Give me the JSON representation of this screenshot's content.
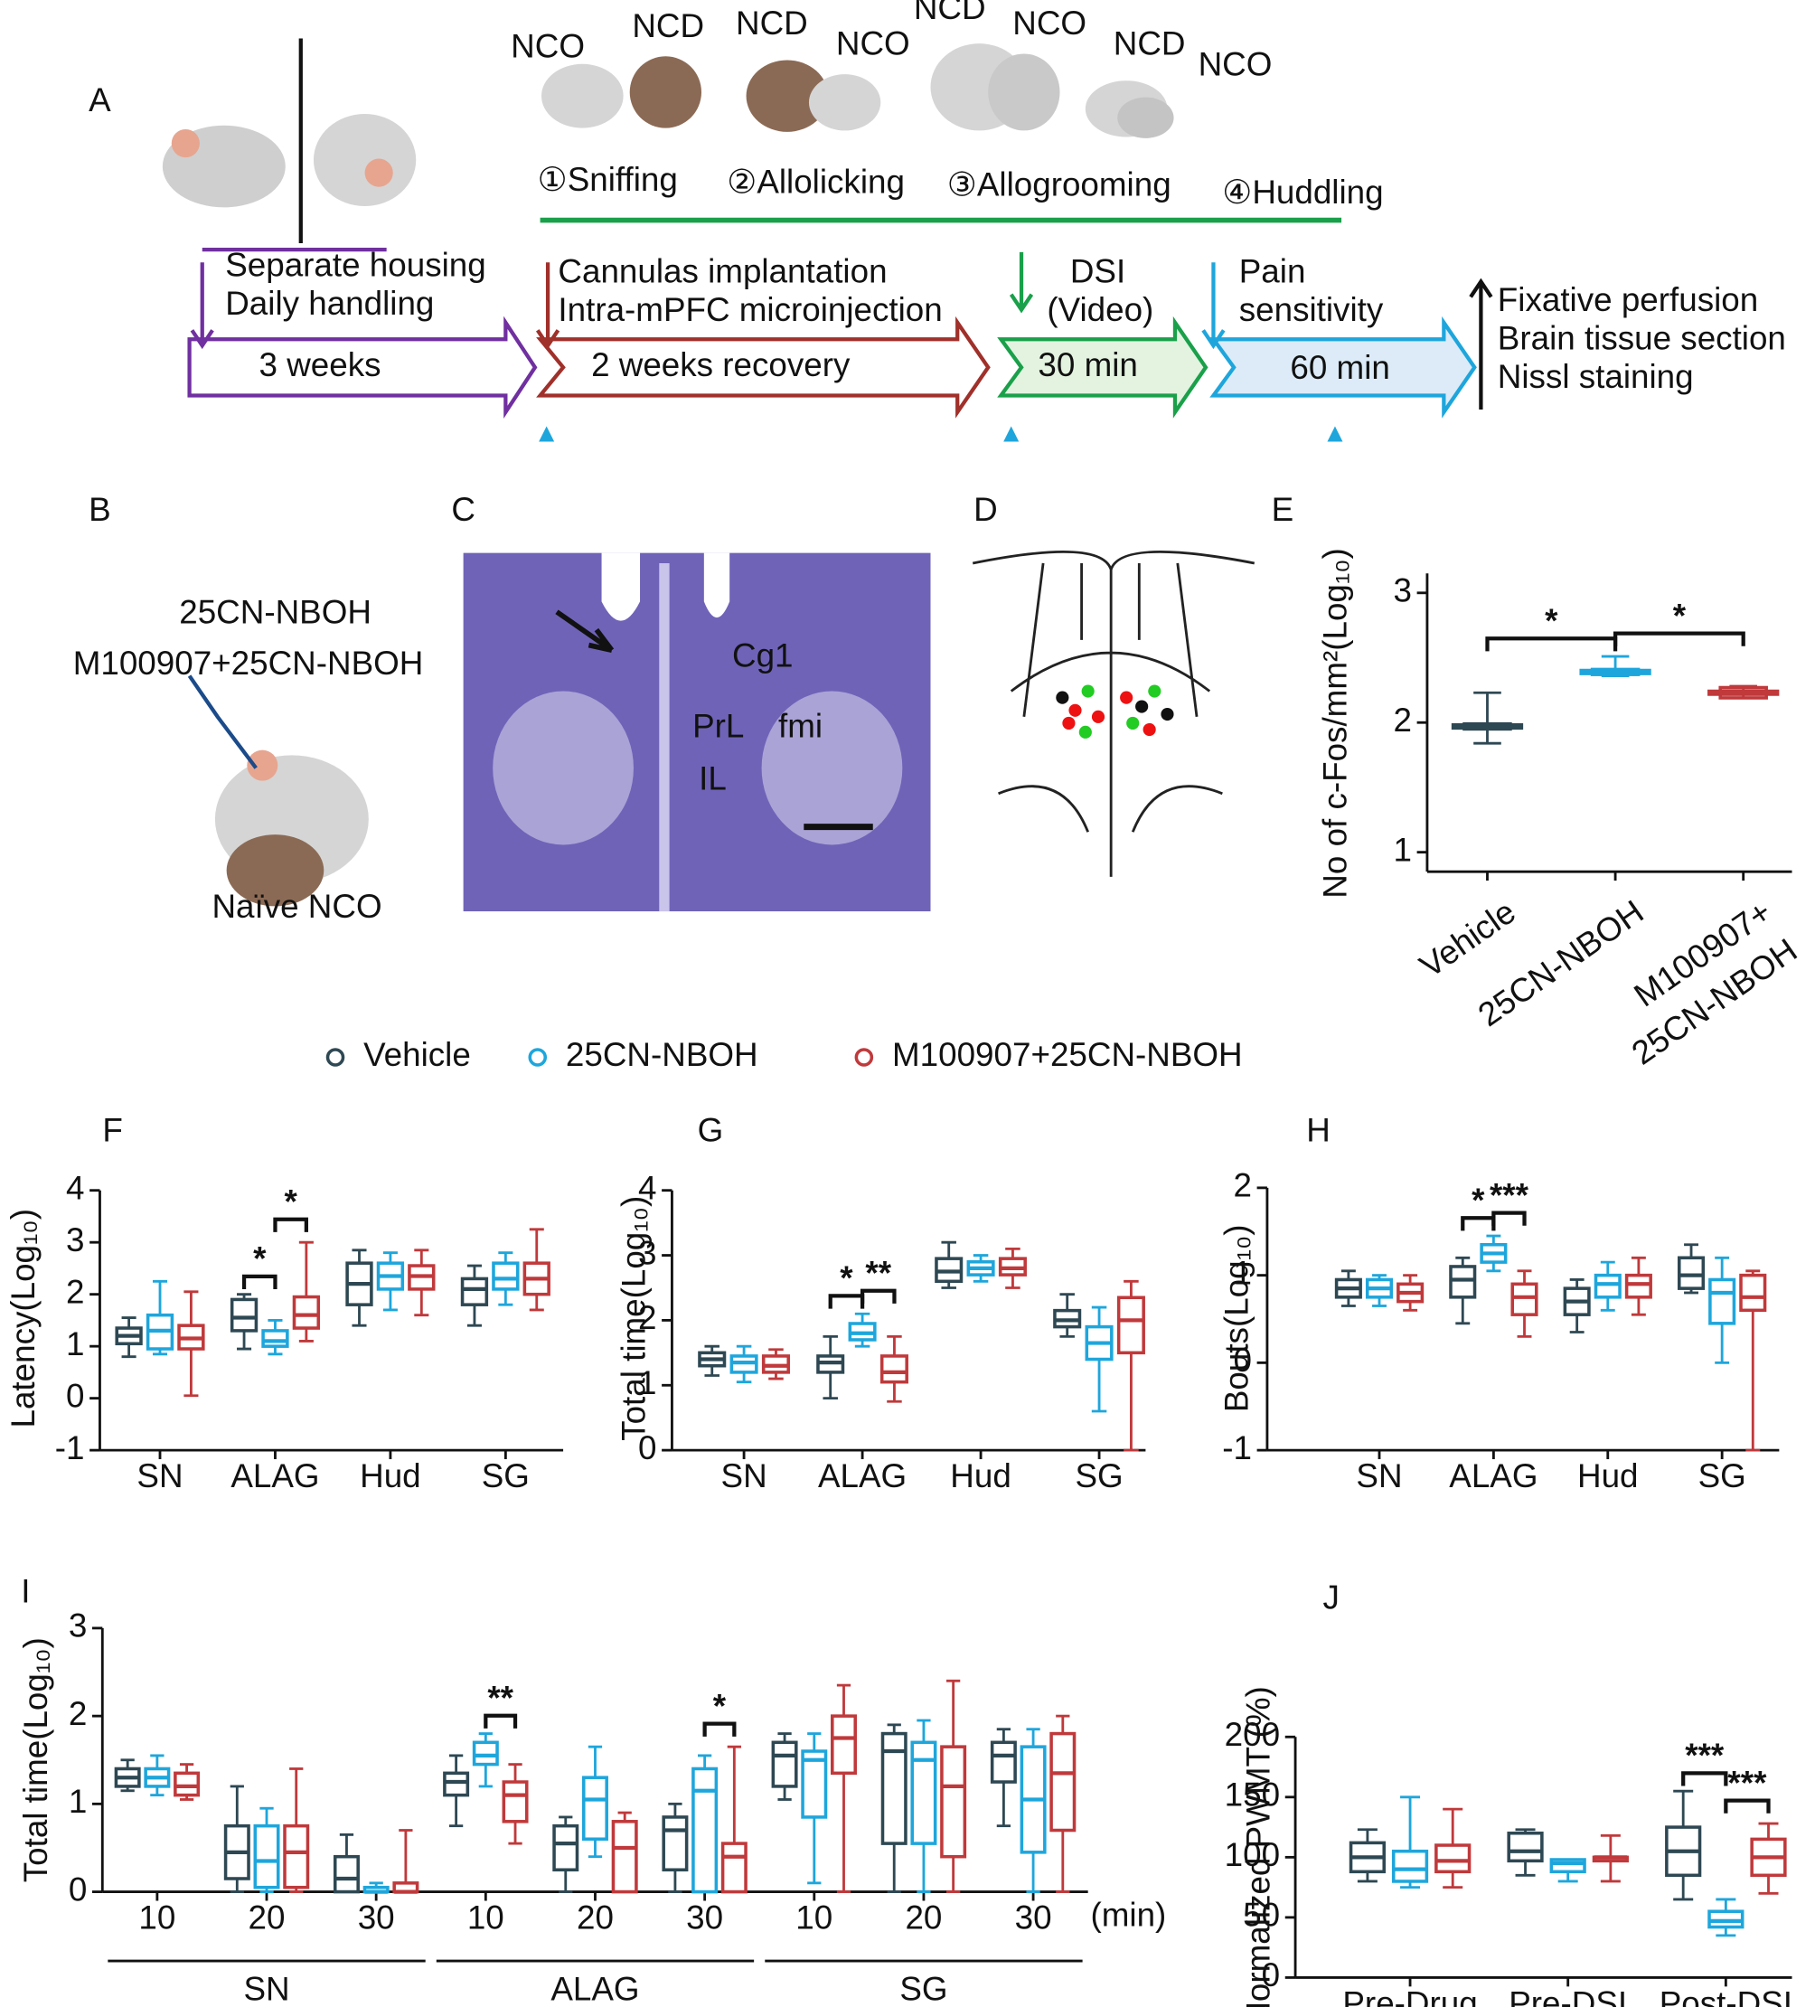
{
  "figure": {
    "panel_labels": [
      "A",
      "B",
      "C",
      "D",
      "E",
      "F",
      "G",
      "H",
      "I",
      "J"
    ],
    "a": {
      "mice_labels": [
        "NCO",
        "NCD",
        "NCD",
        "NCO",
        "NCD",
        "NCO",
        "NCD",
        "NCO"
      ],
      "steps": [
        "①Sniffing",
        "②Allolicking",
        "③Allogrooming",
        "④Huddling"
      ],
      "housing": [
        "Separate housing",
        "Daily handling"
      ],
      "surgery": [
        "Cannulas implantation",
        "Intra-mPFC microinjection"
      ],
      "dsi": [
        "DSI",
        "(Video)"
      ],
      "pain": [
        "Pain",
        "sensitivity"
      ],
      "end": [
        "Fixative perfusion",
        "Brain tissue section",
        "Nissl staining"
      ],
      "phases": [
        "3 weeks",
        "2 weeks recovery",
        "30 min",
        "60 min"
      ]
    },
    "b": {
      "drugs": [
        "25CN-NBOH",
        "M100907+25CN-NBOH"
      ],
      "animal": "Naïve NCO"
    },
    "c": {
      "regions": [
        "Cg1",
        "PrL",
        "fmi",
        "IL"
      ]
    }
  },
  "chart_data": [
    {
      "type": "box",
      "ylabel": "No of c-Fos/mm²(Log₁₀)",
      "ylim": [
        0.85,
        3.15
      ],
      "yticks": [
        1,
        2,
        3
      ],
      "categories": [
        "Vehicle",
        "25CN-NBOH",
        [
          "M100907+",
          "25CN-NBOH"
        ]
      ],
      "colors": [
        "#2e4853",
        "#1ea6dc",
        "#c0393b"
      ],
      "values": [
        {
          "min": 1.84,
          "q1": 1.95,
          "median": 1.97,
          "q3": 1.99,
          "max": 2.23
        },
        {
          "min": 2.36,
          "q1": 2.37,
          "median": 2.39,
          "q3": 2.41,
          "max": 2.51
        },
        {
          "min": 2.19,
          "q1": 2.19,
          "median": 2.23,
          "q3": 2.27,
          "max": 2.28
        }
      ],
      "annotations": [
        {
          "text": "*",
          "at": [
            0,
            1
          ]
        },
        {
          "text": "*",
          "at": [
            1,
            2
          ]
        }
      ]
    },
    {
      "type": "grouped-box",
      "ylabel": "Latency(Log₁₀)",
      "ylim": [
        -1,
        4
      ],
      "yticks": [
        -1,
        0,
        1,
        2,
        3,
        4
      ],
      "categories": [
        "SN",
        "ALAG",
        "Hud",
        "SG"
      ],
      "series": [
        {
          "name": "Vehicle",
          "color": "#2e4853",
          "values": [
            {
              "min": 0.8,
              "q1": 1.05,
              "median": 1.2,
              "q3": 1.35,
              "max": 1.55
            },
            {
              "min": 0.95,
              "q1": 1.3,
              "median": 1.55,
              "q3": 1.9,
              "max": 2.0
            },
            {
              "min": 1.4,
              "q1": 1.8,
              "median": 2.2,
              "q3": 2.6,
              "max": 2.85
            },
            {
              "min": 1.4,
              "q1": 1.8,
              "median": 2.1,
              "q3": 2.3,
              "max": 2.55
            }
          ]
        },
        {
          "name": "25CN-NBOH",
          "color": "#1ea6dc",
          "values": [
            {
              "min": 0.85,
              "q1": 0.95,
              "median": 1.3,
              "q3": 1.6,
              "max": 2.25
            },
            {
              "min": 0.85,
              "q1": 1.0,
              "median": 1.1,
              "q3": 1.3,
              "max": 1.5
            },
            {
              "min": 1.7,
              "q1": 2.1,
              "median": 2.35,
              "q3": 2.6,
              "max": 2.8
            },
            {
              "min": 1.8,
              "q1": 2.1,
              "median": 2.3,
              "q3": 2.6,
              "max": 2.8
            }
          ]
        },
        {
          "name": "M100907+25CN-NBOH",
          "color": "#c0393b",
          "values": [
            {
              "min": 0.05,
              "q1": 0.95,
              "median": 1.15,
              "q3": 1.4,
              "max": 2.05
            },
            {
              "min": 1.1,
              "q1": 1.35,
              "median": 1.6,
              "q3": 1.95,
              "max": 3.0
            },
            {
              "min": 1.6,
              "q1": 2.1,
              "median": 2.35,
              "q3": 2.55,
              "max": 2.85
            },
            {
              "min": 1.7,
              "q1": 2.0,
              "median": 2.3,
              "q3": 2.6,
              "max": 3.25
            }
          ]
        }
      ],
      "annotations": [
        {
          "text": "*",
          "category": 1,
          "at": [
            0,
            1
          ]
        },
        {
          "text": "*",
          "category": 1,
          "at": [
            1,
            2
          ]
        }
      ]
    },
    {
      "type": "grouped-box",
      "ylabel": "Total time(Log₁₀)",
      "ylim": [
        0,
        4
      ],
      "yticks": [
        0,
        1,
        2,
        3,
        4
      ],
      "categories": [
        "SN",
        "ALAG",
        "Hud",
        "SG"
      ],
      "series": [
        {
          "name": "Vehicle",
          "color": "#2e4853",
          "values": [
            {
              "min": 1.15,
              "q1": 1.3,
              "median": 1.4,
              "q3": 1.5,
              "max": 1.6
            },
            {
              "min": 0.8,
              "q1": 1.2,
              "median": 1.35,
              "q3": 1.45,
              "max": 1.75
            },
            {
              "min": 2.5,
              "q1": 2.6,
              "median": 2.75,
              "q3": 2.95,
              "max": 3.2
            },
            {
              "min": 1.75,
              "q1": 1.9,
              "median": 2.0,
              "q3": 2.15,
              "max": 2.4
            }
          ]
        },
        {
          "name": "25CN-NBOH",
          "color": "#1ea6dc",
          "values": [
            {
              "min": 1.05,
              "q1": 1.2,
              "median": 1.35,
              "q3": 1.45,
              "max": 1.6
            },
            {
              "min": 1.6,
              "q1": 1.7,
              "median": 1.8,
              "q3": 1.95,
              "max": 2.1
            },
            {
              "min": 2.6,
              "q1": 2.7,
              "median": 2.8,
              "q3": 2.9,
              "max": 3.0
            },
            {
              "min": 0.6,
              "q1": 1.4,
              "median": 1.65,
              "q3": 1.9,
              "max": 2.2
            }
          ]
        },
        {
          "name": "M100907+25CN-NBOH",
          "color": "#c0393b",
          "values": [
            {
              "min": 1.1,
              "q1": 1.2,
              "median": 1.3,
              "q3": 1.45,
              "max": 1.55
            },
            {
              "min": 0.75,
              "q1": 1.05,
              "median": 1.2,
              "q3": 1.45,
              "max": 1.75
            },
            {
              "min": 2.5,
              "q1": 2.7,
              "median": 2.8,
              "q3": 2.95,
              "max": 3.1
            },
            {
              "min": 0,
              "q1": 1.5,
              "median": 2.0,
              "q3": 2.35,
              "max": 2.6
            }
          ]
        }
      ],
      "annotations": [
        {
          "text": "*",
          "category": 1,
          "at": [
            0,
            1
          ]
        },
        {
          "text": "**",
          "category": 1,
          "at": [
            1,
            2
          ]
        }
      ]
    },
    {
      "type": "grouped-box",
      "ylabel": "Bouts(Log₁₀)",
      "ylim": [
        -1,
        2
      ],
      "yticks": [
        -1,
        0,
        1,
        2
      ],
      "categories": [
        "SN",
        "ALAG",
        "Hud",
        "SG"
      ],
      "series": [
        {
          "name": "Vehicle",
          "color": "#2e4853",
          "values": [
            {
              "min": 0.65,
              "q1": 0.75,
              "median": 0.85,
              "q3": 0.95,
              "max": 1.05
            },
            {
              "min": 0.45,
              "q1": 0.75,
              "median": 0.95,
              "q3": 1.1,
              "max": 1.2
            },
            {
              "min": 0.35,
              "q1": 0.55,
              "median": 0.7,
              "q3": 0.85,
              "max": 0.95
            },
            {
              "min": 0.8,
              "q1": 0.85,
              "median": 1.0,
              "q3": 1.2,
              "max": 1.35
            }
          ]
        },
        {
          "name": "25CN-NBOH",
          "color": "#1ea6dc",
          "values": [
            {
              "min": 0.65,
              "q1": 0.75,
              "median": 0.85,
              "q3": 0.95,
              "max": 1.0
            },
            {
              "min": 1.05,
              "q1": 1.15,
              "median": 1.25,
              "q3": 1.35,
              "max": 1.45
            },
            {
              "min": 0.6,
              "q1": 0.75,
              "median": 0.9,
              "q3": 1.0,
              "max": 1.15
            },
            {
              "min": 0,
              "q1": 0.45,
              "median": 0.8,
              "q3": 0.95,
              "max": 1.2
            }
          ]
        },
        {
          "name": "M100907+25CN-NBOH",
          "color": "#c0393b",
          "values": [
            {
              "min": 0.6,
              "q1": 0.7,
              "median": 0.8,
              "q3": 0.9,
              "max": 1.0
            },
            {
              "min": 0.3,
              "q1": 0.55,
              "median": 0.75,
              "q3": 0.9,
              "max": 1.05
            },
            {
              "min": 0.55,
              "q1": 0.75,
              "median": 0.9,
              "q3": 1.0,
              "max": 1.2
            },
            {
              "min": -1,
              "q1": 0.6,
              "median": 0.75,
              "q3": 1.0,
              "max": 1.05
            }
          ]
        }
      ],
      "annotations": [
        {
          "text": "*",
          "category": 1,
          "at": [
            0,
            1
          ]
        },
        {
          "text": "***",
          "category": 1,
          "at": [
            1,
            2
          ]
        }
      ]
    },
    {
      "type": "grouped-box",
      "ylabel": "Total time(Log₁₀)",
      "ylim": [
        0,
        3
      ],
      "yticks": [
        0,
        1,
        2,
        3
      ],
      "categories": [
        "10",
        "20",
        "30",
        "10",
        "20",
        "30",
        "10",
        "20",
        "30"
      ],
      "groups": [
        "SN",
        "ALAG",
        "SG"
      ],
      "x_unit": "(min)",
      "series": [
        {
          "name": "Vehicle",
          "color": "#2e4853",
          "values": [
            {
              "min": 1.15,
              "q1": 1.2,
              "median": 1.3,
              "q3": 1.4,
              "max": 1.5
            },
            {
              "min": 0,
              "q1": 0.15,
              "median": 0.45,
              "q3": 0.75,
              "max": 1.2
            },
            {
              "min": 0,
              "q1": 0,
              "median": 0.15,
              "q3": 0.4,
              "max": 0.65
            },
            {
              "min": 0.75,
              "q1": 1.1,
              "median": 1.25,
              "q3": 1.35,
              "max": 1.55
            },
            {
              "min": 0,
              "q1": 0.25,
              "median": 0.55,
              "q3": 0.75,
              "max": 0.85
            },
            {
              "min": 0,
              "q1": 0.25,
              "median": 0.7,
              "q3": 0.85,
              "max": 1.0
            },
            {
              "min": 1.05,
              "q1": 1.2,
              "median": 1.55,
              "q3": 1.7,
              "max": 1.8
            },
            {
              "min": 0,
              "q1": 0.55,
              "median": 1.6,
              "q3": 1.8,
              "max": 1.9
            },
            {
              "min": 0.75,
              "q1": 1.25,
              "median": 1.55,
              "q3": 1.7,
              "max": 1.85
            }
          ]
        },
        {
          "name": "25CN-NBOH",
          "color": "#1ea6dc",
          "values": [
            {
              "min": 1.1,
              "q1": 1.2,
              "median": 1.3,
              "q3": 1.4,
              "max": 1.55
            },
            {
              "min": 0,
              "q1": 0.05,
              "median": 0.35,
              "q3": 0.75,
              "max": 0.95
            },
            {
              "min": 0,
              "q1": 0,
              "median": 0,
              "q3": 0.05,
              "max": 0.1
            },
            {
              "min": 1.2,
              "q1": 1.45,
              "median": 1.55,
              "q3": 1.7,
              "max": 1.8
            },
            {
              "min": 0.4,
              "q1": 0.6,
              "median": 1.05,
              "q3": 1.3,
              "max": 1.65
            },
            {
              "min": 0,
              "q1": 0,
              "median": 1.15,
              "q3": 1.4,
              "max": 1.55
            },
            {
              "min": 0.1,
              "q1": 0.85,
              "median": 1.5,
              "q3": 1.6,
              "max": 1.8
            },
            {
              "min": 0,
              "q1": 0.55,
              "median": 1.5,
              "q3": 1.7,
              "max": 1.95
            },
            {
              "min": 0,
              "q1": 0.45,
              "median": 1.05,
              "q3": 1.65,
              "max": 1.85
            }
          ]
        },
        {
          "name": "M100907+25CN-NBOH",
          "color": "#c0393b",
          "values": [
            {
              "min": 1.05,
              "q1": 1.1,
              "median": 1.2,
              "q3": 1.35,
              "max": 1.45
            },
            {
              "min": 0,
              "q1": 0.05,
              "median": 0.45,
              "q3": 0.75,
              "max": 1.4
            },
            {
              "min": 0,
              "q1": 0,
              "median": 0,
              "q3": 0.1,
              "max": 0.7
            },
            {
              "min": 0.55,
              "q1": 0.8,
              "median": 1.1,
              "q3": 1.25,
              "max": 1.45
            },
            {
              "min": 0,
              "q1": 0,
              "median": 0.5,
              "q3": 0.8,
              "max": 0.9
            },
            {
              "min": 0,
              "q1": 0,
              "median": 0.4,
              "q3": 0.55,
              "max": 1.65
            },
            {
              "min": 0,
              "q1": 1.35,
              "median": 1.75,
              "q3": 2.0,
              "max": 2.35
            },
            {
              "min": 0,
              "q1": 0.4,
              "median": 1.2,
              "q3": 1.65,
              "max": 2.4
            },
            {
              "min": 0,
              "q1": 0.7,
              "median": 1.35,
              "q3": 1.8,
              "max": 2.0
            }
          ]
        }
      ],
      "annotations": [
        {
          "text": "**",
          "category": 3,
          "at": [
            1,
            2
          ]
        },
        {
          "text": "*",
          "category": 5,
          "at": [
            1,
            2
          ]
        }
      ]
    },
    {
      "type": "grouped-box",
      "ylabel": "Normalized PWMT (%)",
      "ylim": [
        0,
        200
      ],
      "yticks": [
        0,
        50,
        100,
        150,
        200
      ],
      "categories": [
        "Pre-Drug",
        "Pre-DSI",
        "Post-DSI"
      ],
      "series": [
        {
          "name": "Vehicle",
          "color": "#2e4853",
          "values": [
            {
              "min": 80,
              "q1": 88,
              "median": 100,
              "q3": 112,
              "max": 123
            },
            {
              "min": 85,
              "q1": 97,
              "median": 105,
              "q3": 120,
              "max": 123
            },
            {
              "min": 65,
              "q1": 85,
              "median": 105,
              "q3": 125,
              "max": 155
            }
          ]
        },
        {
          "name": "25CN-NBOH",
          "color": "#1ea6dc",
          "values": [
            {
              "min": 75,
              "q1": 80,
              "median": 90,
              "q3": 105,
              "max": 150
            },
            {
              "min": 80,
              "q1": 88,
              "median": 95,
              "q3": 98,
              "max": 98
            },
            {
              "min": 35,
              "q1": 42,
              "median": 47,
              "q3": 55,
              "max": 65
            }
          ]
        },
        {
          "name": "M100907+25CN-NBOH",
          "color": "#c0393b",
          "values": [
            {
              "min": 75,
              "q1": 88,
              "median": 97,
              "q3": 110,
              "max": 140
            },
            {
              "min": 80,
              "q1": 97,
              "median": 100,
              "q3": 100,
              "max": 118
            },
            {
              "min": 70,
              "q1": 85,
              "median": 100,
              "q3": 115,
              "max": 128
            }
          ]
        }
      ],
      "annotations": [
        {
          "text": "***",
          "category": 2,
          "at": [
            0,
            1
          ]
        },
        {
          "text": "***",
          "category": 2,
          "at": [
            1,
            2
          ]
        }
      ]
    }
  ]
}
